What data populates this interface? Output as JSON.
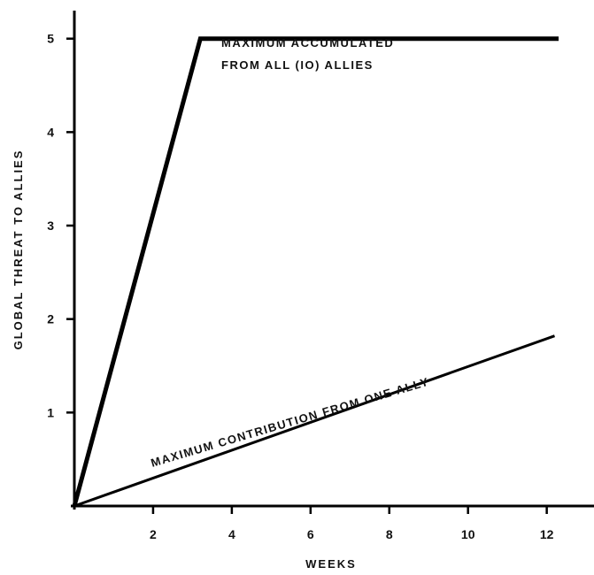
{
  "chart_data": {
    "type": "line",
    "title": "",
    "xlabel": "WEEKS",
    "ylabel": "GLOBAL THREAT TO ALLIES",
    "xlim": [
      0,
      13.2
    ],
    "ylim": [
      0,
      5.3
    ],
    "x_ticks": [
      2,
      4,
      6,
      8,
      10,
      12
    ],
    "y_ticks": [
      1,
      2,
      3,
      4,
      5
    ],
    "x_tick_labels": [
      "2",
      "4",
      "6",
      "8",
      "10",
      "12"
    ],
    "y_tick_labels": [
      "1",
      "2",
      "3",
      "4",
      "5"
    ],
    "grid": false,
    "series": [
      {
        "x": [
          0,
          3.2,
          12.3
        ],
        "y": [
          0,
          5,
          5
        ],
        "line_color": "#000000"
      },
      {
        "x": [
          0,
          12.2
        ],
        "y": [
          0,
          1.82
        ],
        "line_color": "#000000"
      }
    ],
    "annotations": [
      {
        "text": "MAXIMUM ACCUMULATED"
      },
      {
        "text": "FROM ALL (IO) ALLIES"
      },
      {
        "text": "MAXIMUM CONTRIBUTION FROM ONE ALLY"
      }
    ]
  }
}
